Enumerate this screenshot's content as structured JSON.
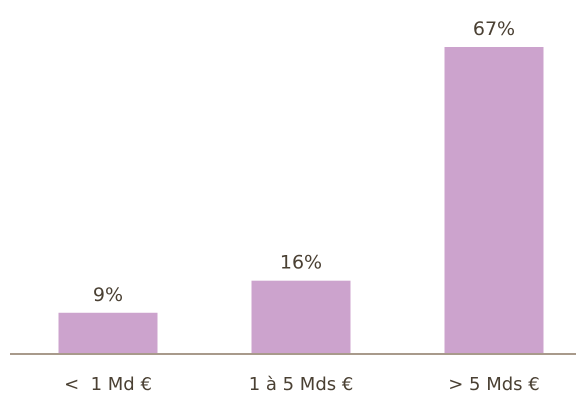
{
  "chart_data": {
    "type": "bar",
    "categories": [
      "<  1 Md €",
      "1 à 5 Mds €",
      "> 5 Mds €"
    ],
    "values": [
      9,
      16,
      67
    ],
    "data_labels": [
      "9%",
      "16%",
      "67%"
    ],
    "title": "",
    "xlabel": "",
    "ylabel": "",
    "ylim": [
      0,
      70
    ],
    "grid": false,
    "legend": "none",
    "colors": {
      "bar": "#cca3cd",
      "axis": "#a89a8b",
      "text": "#4a4033"
    }
  }
}
